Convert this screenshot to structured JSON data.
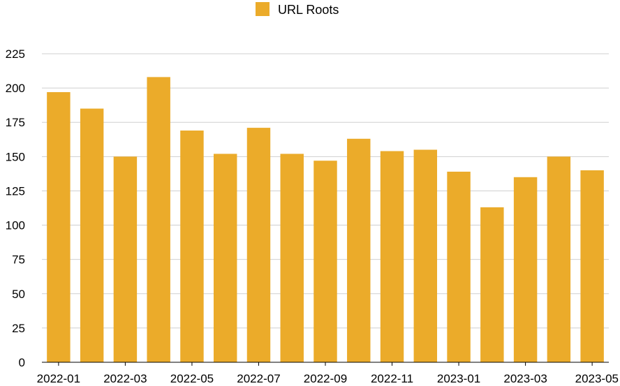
{
  "chart_data": {
    "type": "bar",
    "legend": {
      "position": "top-center",
      "entries": [
        "URL Roots"
      ]
    },
    "series": [
      {
        "name": "URL Roots",
        "color": "#EBAB2A",
        "values": [
          197,
          185,
          150,
          208,
          169,
          152,
          171,
          152,
          147,
          163,
          154,
          155,
          139,
          113,
          135,
          150,
          140
        ]
      }
    ],
    "categories": [
      "2022-01",
      "2022-02",
      "2022-03",
      "2022-04",
      "2022-05",
      "2022-06",
      "2022-07",
      "2022-08",
      "2022-09",
      "2022-10",
      "2022-11",
      "2022-12",
      "2023-01",
      "2023-02",
      "2023-03",
      "2023-04",
      "2023-05"
    ],
    "x_tick_labels": [
      "2022-01",
      "2022-03",
      "2022-05",
      "2022-07",
      "2022-09",
      "2022-11",
      "2023-01",
      "2023-03",
      "2023-05"
    ],
    "y_ticks": [
      0,
      25,
      50,
      75,
      100,
      125,
      150,
      175,
      200,
      225
    ],
    "ylim": [
      0,
      225
    ],
    "grid": true,
    "title": "",
    "xlabel": "",
    "ylabel": ""
  }
}
